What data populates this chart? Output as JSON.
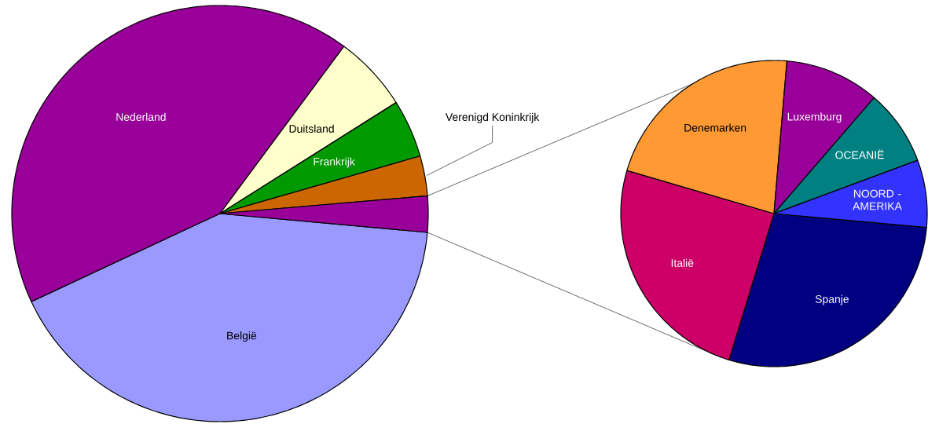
{
  "chart_data": [
    {
      "type": "pie",
      "categories": [
        "België",
        "Nederland",
        "Duitsland",
        "Frankrijk",
        "Verenigd Koninkrijk",
        null
      ],
      "values": [
        41.6,
        42.1,
        5.9,
        4.5,
        3.1,
        2.8
      ],
      "colors": [
        "#9999ff",
        "#990099",
        "#ffffcc",
        "#009900",
        "#cc6600",
        "#990099"
      ]
    },
    {
      "type": "pie",
      "categories": [
        "Spanje",
        "Italië",
        "Denemarken",
        "Luxemburg",
        "OCEANIË",
        "NOORD - AMERIKA"
      ],
      "values": [
        28.3,
        24.8,
        21.8,
        10.0,
        8.0,
        7.1
      ],
      "colors": [
        "#000080",
        "#cc0066",
        "#ff9933",
        "#990099",
        "#008080",
        "#3333ff"
      ]
    }
  ]
}
